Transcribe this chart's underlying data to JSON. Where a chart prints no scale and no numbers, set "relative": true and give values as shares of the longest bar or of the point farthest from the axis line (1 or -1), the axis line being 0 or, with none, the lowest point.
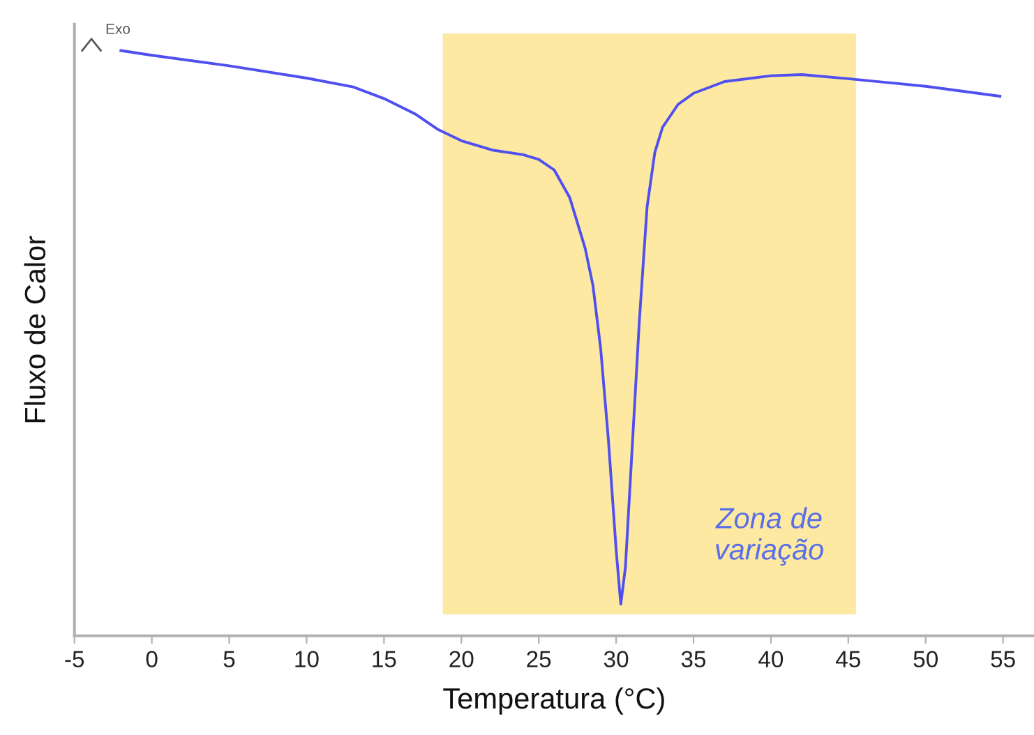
{
  "chart_data": {
    "type": "line",
    "relative": true,
    "xlabel": "Temperatura (°C)",
    "ylabel": "Fluxo de Calor",
    "x": [
      -2,
      0,
      5,
      10,
      13,
      15,
      17,
      18.5,
      20,
      22,
      24,
      25,
      26,
      27,
      28,
      28.5,
      29,
      29.5,
      30,
      30.3,
      30.6,
      31,
      31.5,
      32,
      32.5,
      33,
      34,
      35,
      37,
      40,
      42,
      45,
      50,
      54.8
    ],
    "series": [
      {
        "color": "#5050f0",
        "values": [
          1.0,
          0.992,
          0.974,
          0.953,
          0.938,
          0.918,
          0.892,
          0.865,
          0.846,
          0.83,
          0.822,
          0.814,
          0.796,
          0.749,
          0.662,
          0.599,
          0.491,
          0.335,
          0.147,
          0.054,
          0.117,
          0.304,
          0.538,
          0.733,
          0.826,
          0.869,
          0.908,
          0.927,
          0.947,
          0.957,
          0.959,
          0.952,
          0.939,
          0.922
        ]
      }
    ],
    "xlim": [
      -5,
      57
    ],
    "xticks": [
      -5,
      0,
      5,
      10,
      15,
      20,
      25,
      30,
      35,
      40,
      45,
      50,
      55
    ],
    "bands": [
      {
        "axis": "x",
        "from": 18.8,
        "to": 45.5,
        "label": "Zona de\nvariação",
        "color": "#fde9a1"
      }
    ],
    "annotations": [
      "Exo"
    ],
    "grid": false,
    "legend": false
  }
}
